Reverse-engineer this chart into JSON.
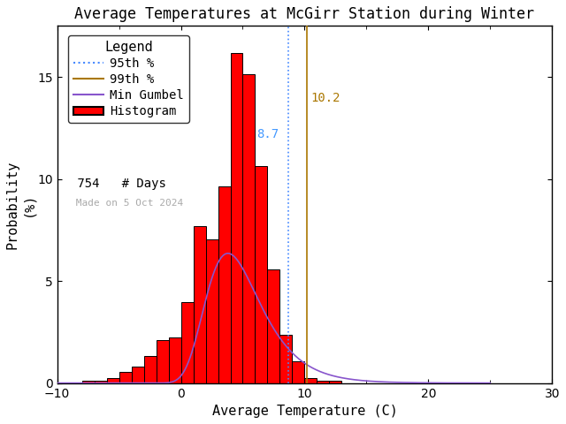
{
  "title": "Average Temperatures at McGirr Station during Winter",
  "xlabel": "Average Temperature (C)",
  "ylabel": "Probability\n(%)",
  "xlim": [
    -10,
    30
  ],
  "ylim": [
    0,
    17.5
  ],
  "xticks": [
    -10,
    0,
    10,
    20,
    30
  ],
  "yticks": [
    0,
    5,
    10,
    15
  ],
  "bar_edges": [
    -8,
    -7,
    -6,
    -5,
    -4,
    -3,
    -2,
    -1,
    0,
    1,
    2,
    3,
    4,
    5,
    6,
    7,
    8,
    9,
    10,
    11,
    12
  ],
  "bar_heights": [
    0.13,
    0.13,
    0.26,
    0.53,
    0.79,
    1.32,
    2.11,
    2.25,
    3.97,
    7.69,
    7.03,
    9.65,
    16.18,
    15.12,
    10.61,
    5.56,
    2.38,
    1.06,
    0.26,
    0.13,
    0.13
  ],
  "bar_color": "#ff0000",
  "bar_edgecolor": "#000000",
  "gumbel_mu": 3.8,
  "gumbel_beta": 2.2,
  "gumbel_scale": 38.0,
  "pct95": 8.7,
  "pct99": 10.2,
  "pct95_color": "#4488ff",
  "pct99_color": "#aa7700",
  "gumbel_color": "#8855cc",
  "n_days": 754,
  "made_on": "Made on 5 Oct 2024",
  "background_color": "#ffffff",
  "title_fontsize": 12,
  "axis_fontsize": 11,
  "legend_fontsize": 10,
  "tick_fontsize": 10,
  "pct99_label_color": "#aa7700",
  "pct95_label_color": "#4499ff"
}
